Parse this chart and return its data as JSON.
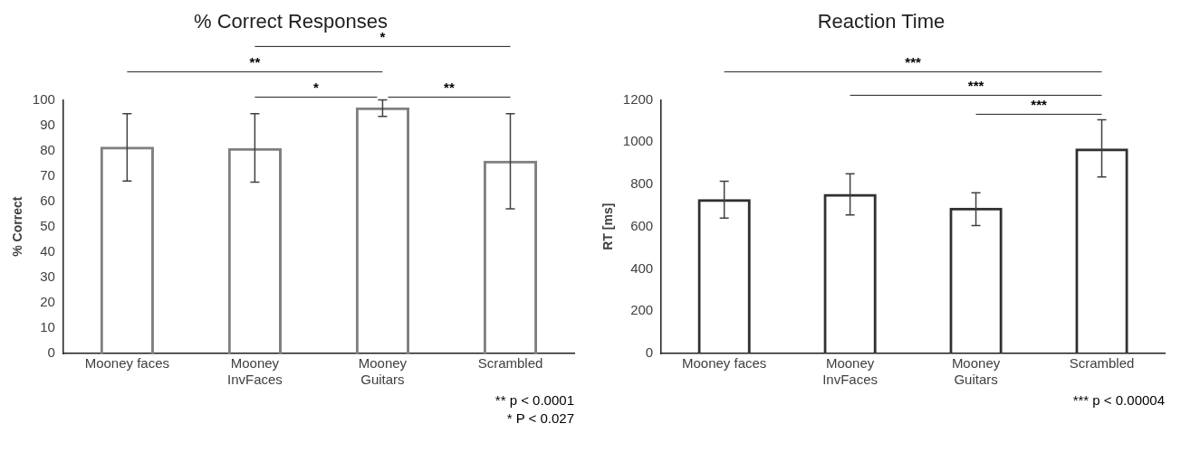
{
  "chart_data": [
    {
      "type": "bar",
      "title": "% Correct Responses",
      "ylabel": "% Correct",
      "categories": [
        "Mooney faces",
        "Mooney InvFaces",
        "Mooney Guitars",
        "Scrambled"
      ],
      "values": [
        81.5,
        81,
        97,
        76
      ],
      "errors": [
        [
          68,
          94.5
        ],
        [
          67.5,
          94.5
        ],
        [
          93.5,
          100
        ],
        [
          57,
          94.5
        ]
      ],
      "color": "#808080",
      "ylim": [
        0,
        100
      ],
      "yticks": [
        0,
        10,
        20,
        30,
        40,
        50,
        60,
        70,
        80,
        90,
        100
      ],
      "grid": false,
      "legend": false,
      "annotations": [
        "*",
        "**",
        "*",
        "**",
        "** p < 0.0001",
        "* P < 0.027"
      ]
    },
    {
      "type": "bar",
      "title": "Reaction Time",
      "ylabel": "RT [ms]",
      "categories": [
        "Mooney faces",
        "Mooney InvFaces",
        "Mooney Guitars",
        "Scrambled"
      ],
      "values": [
        730,
        755,
        690,
        970
      ],
      "errors": [
        [
          640,
          815
        ],
        [
          655,
          850
        ],
        [
          605,
          760
        ],
        [
          835,
          1105
        ]
      ],
      "color": "#303030",
      "ylim": [
        0,
        1200
      ],
      "yticks": [
        0,
        200,
        400,
        600,
        800,
        1000,
        1200
      ],
      "grid": false,
      "legend": false,
      "annotations": [
        "***",
        "***",
        "***",
        "*** p < 0.00004"
      ]
    }
  ]
}
